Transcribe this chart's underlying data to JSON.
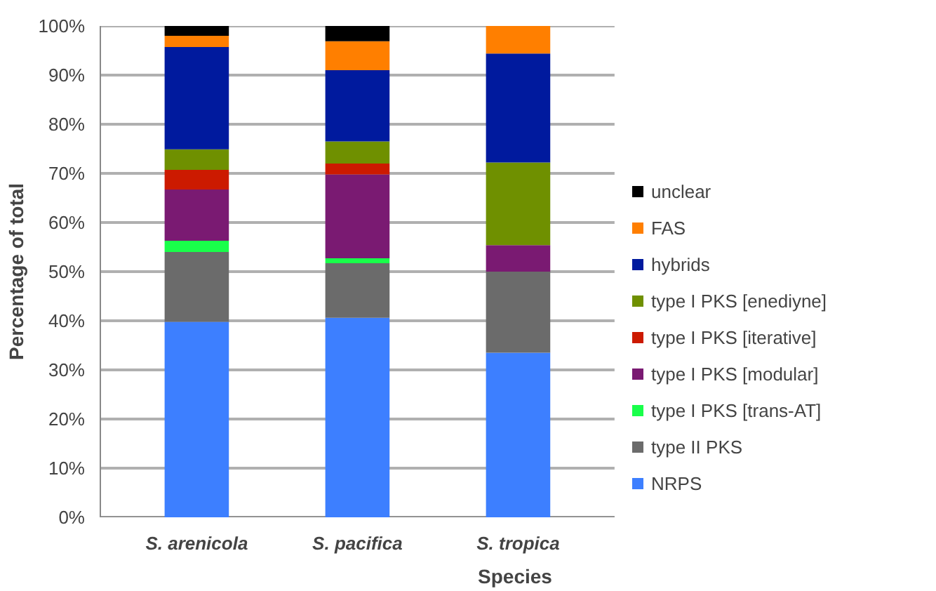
{
  "chart_data": {
    "type": "bar",
    "stacked": true,
    "xlabel": "Species",
    "ylabel": "Percentage of total",
    "categories": [
      "S. arenicola",
      "S. pacifica",
      "S. tropica"
    ],
    "series": [
      {
        "name": "NRPS",
        "color": "#3d7fff",
        "values": [
          39.8,
          40.6,
          33.5
        ]
      },
      {
        "name": "type II PKS",
        "color": "#6b6b6b",
        "values": [
          14.2,
          11.1,
          16.5
        ]
      },
      {
        "name": "type I PKS [trans-AT]",
        "color": "#19ff4a",
        "values": [
          2.3,
          1.0,
          0
        ]
      },
      {
        "name": "type I PKS [modular]",
        "color": "#7a1a72",
        "values": [
          10.4,
          17.1,
          5.4
        ]
      },
      {
        "name": "type I PKS [iterative]",
        "color": "#cc1a00",
        "values": [
          4.0,
          2.2,
          0
        ]
      },
      {
        "name": "type I PKS [enediyne]",
        "color": "#6f9000",
        "values": [
          4.2,
          4.5,
          16.8
        ]
      },
      {
        "name": "hybrids",
        "color": "#001a9e",
        "values": [
          20.8,
          14.5,
          22.2
        ]
      },
      {
        "name": "FAS",
        "color": "#ff7f00",
        "values": [
          2.3,
          5.9,
          5.6
        ]
      },
      {
        "name": "unclear",
        "color": "#000000",
        "values": [
          2.0,
          3.1,
          0
        ]
      }
    ],
    "ylim": [
      0,
      100
    ],
    "yticks": [
      {
        "value": 0,
        "label": "0%"
      },
      {
        "value": 10,
        "label": "10%"
      },
      {
        "value": 20,
        "label": "20%"
      },
      {
        "value": 30,
        "label": "30%"
      },
      {
        "value": 40,
        "label": "40%"
      },
      {
        "value": 50,
        "label": "50%"
      },
      {
        "value": 60,
        "label": "60%"
      },
      {
        "value": 70,
        "label": "70%"
      },
      {
        "value": 80,
        "label": "80%"
      },
      {
        "value": 90,
        "label": "90%"
      },
      {
        "value": 100,
        "label": "100%"
      }
    ],
    "grid": "y",
    "legend": "right"
  }
}
